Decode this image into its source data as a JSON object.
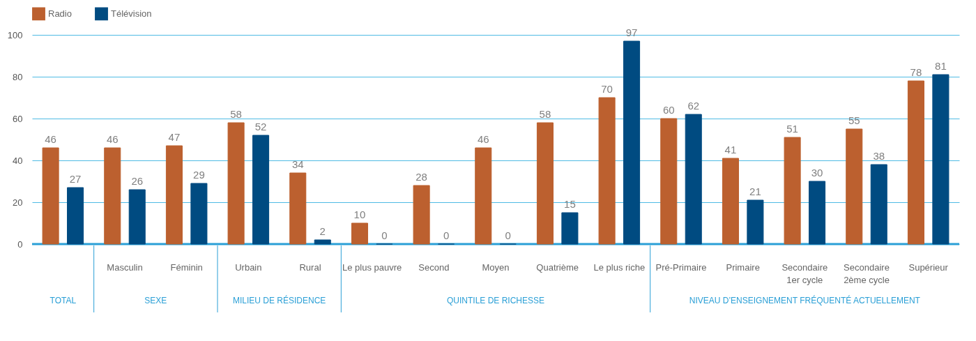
{
  "chart_data": {
    "type": "bar",
    "categories": [
      null,
      "Masculin",
      "Féminin",
      "Urbain",
      "Rural",
      "Le plus pauvre",
      "Second",
      "Moyen",
      "Quatrième",
      "Le plus riche",
      "Pré-Primaire",
      "Primaire",
      "Secondaire 1er cycle",
      "Secondaire 2ème cycle",
      "Supérieur"
    ],
    "series": [
      {
        "name": "Radio",
        "color": "#bc602f",
        "values": [
          46,
          46,
          47,
          58,
          34,
          10,
          28,
          46,
          58,
          70,
          60,
          41,
          51,
          55,
          78
        ]
      },
      {
        "name": "Télévision",
        "color": "#004b81",
        "values": [
          27,
          26,
          29,
          52,
          2,
          0,
          0,
          0,
          15,
          97,
          62,
          21,
          30,
          38,
          81
        ]
      }
    ],
    "ylim": [
      0,
      100
    ],
    "yticks": [
      0,
      20,
      40,
      60,
      80,
      100
    ],
    "grid": "y",
    "legend": "top left",
    "data_labels": true,
    "annotations": [
      "TOTAL",
      "SEXE",
      "MILIEU DE RÉSIDENCE",
      "QUINTILE DE RICHESSE",
      "NIVEAU D’ENSEIGNEMENT FRÉQUENTÉ ACTUELLEMENT"
    ]
  }
}
